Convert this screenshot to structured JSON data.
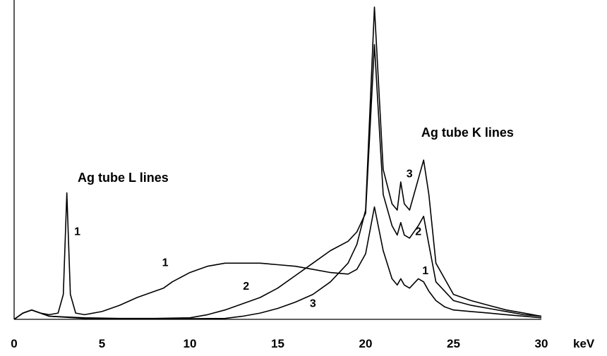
{
  "chart_data": {
    "type": "line",
    "xlabel": "",
    "ylabel": "",
    "x_unit": "keV",
    "xlim": [
      0,
      30
    ],
    "ylim": [
      0,
      1.0
    ],
    "x_ticks": [
      "0",
      "5",
      "10",
      "15",
      "20",
      "25",
      "30"
    ],
    "grid": false,
    "legend": "none",
    "annotations": [
      {
        "text": "Ag tube L lines",
        "x": 6.2,
        "y": 0.44
      },
      {
        "text": "Ag tube K lines",
        "x": 25.8,
        "y": 0.585
      }
    ],
    "series": [
      {
        "name": "1",
        "x": [
          0,
          0.5,
          1,
          1.5,
          2,
          2.5,
          2.8,
          3,
          3.2,
          3.5,
          4,
          5,
          6,
          7,
          8,
          8.5,
          9,
          10,
          11,
          12,
          13,
          14,
          15,
          16,
          17,
          18,
          19,
          19.5,
          20,
          20.5,
          21,
          21.5,
          21.8,
          22,
          22.2,
          22.5,
          23,
          23.3,
          23.6,
          24,
          24.5,
          25,
          26,
          27,
          28,
          29,
          30
        ],
        "y": [
          0,
          0.02,
          0.03,
          0.02,
          0.015,
          0.02,
          0.08,
          0.405,
          0.08,
          0.02,
          0.015,
          0.025,
          0.045,
          0.07,
          0.09,
          0.1,
          0.12,
          0.15,
          0.17,
          0.18,
          0.18,
          0.18,
          0.175,
          0.17,
          0.16,
          0.15,
          0.145,
          0.16,
          0.21,
          0.36,
          0.22,
          0.13,
          0.11,
          0.13,
          0.11,
          0.1,
          0.13,
          0.12,
          0.09,
          0.06,
          0.04,
          0.03,
          0.025,
          0.02,
          0.015,
          0.01,
          0.005
        ]
      },
      {
        "name": "2",
        "x": [
          0,
          0.5,
          1,
          2,
          4,
          6,
          8,
          10,
          11,
          12,
          13,
          14,
          15,
          16,
          17,
          18,
          19,
          19.5,
          20,
          20.5,
          21,
          21.5,
          21.8,
          22,
          22.2,
          22.5,
          23,
          23.3,
          23.6,
          24,
          25,
          26,
          27,
          28,
          29,
          30
        ],
        "y": [
          0,
          0.02,
          0.03,
          0.01,
          0.005,
          0.003,
          0.003,
          0.005,
          0.015,
          0.03,
          0.05,
          0.07,
          0.1,
          0.14,
          0.18,
          0.22,
          0.25,
          0.28,
          0.34,
          0.88,
          0.4,
          0.3,
          0.27,
          0.31,
          0.27,
          0.26,
          0.3,
          0.33,
          0.24,
          0.12,
          0.06,
          0.045,
          0.035,
          0.025,
          0.015,
          0.01
        ]
      },
      {
        "name": "3",
        "x": [
          0,
          0.5,
          1,
          2,
          4,
          6,
          8,
          10,
          12,
          13,
          14,
          15,
          16,
          17,
          18,
          19,
          19.5,
          20,
          20.5,
          21,
          21.5,
          21.8,
          22,
          22.2,
          22.5,
          23,
          23.3,
          23.6,
          24,
          25,
          26,
          27,
          28,
          29,
          30
        ],
        "y": [
          0,
          0.02,
          0.03,
          0.01,
          0.003,
          0.002,
          0.002,
          0.002,
          0.003,
          0.01,
          0.02,
          0.035,
          0.055,
          0.08,
          0.12,
          0.18,
          0.24,
          0.35,
          1.0,
          0.48,
          0.37,
          0.35,
          0.44,
          0.37,
          0.35,
          0.45,
          0.51,
          0.4,
          0.18,
          0.08,
          0.06,
          0.045,
          0.03,
          0.02,
          0.01
        ]
      }
    ],
    "curve_labels": [
      {
        "text": "1",
        "x": 3.6,
        "y": 0.27
      },
      {
        "text": "1",
        "x": 8.6,
        "y": 0.17
      },
      {
        "text": "1",
        "x": 23.4,
        "y": 0.145
      },
      {
        "text": "2",
        "x": 13.2,
        "y": 0.095
      },
      {
        "text": "2",
        "x": 23.0,
        "y": 0.27
      },
      {
        "text": "3",
        "x": 17.0,
        "y": 0.04
      },
      {
        "text": "3",
        "x": 22.5,
        "y": 0.455
      }
    ]
  }
}
